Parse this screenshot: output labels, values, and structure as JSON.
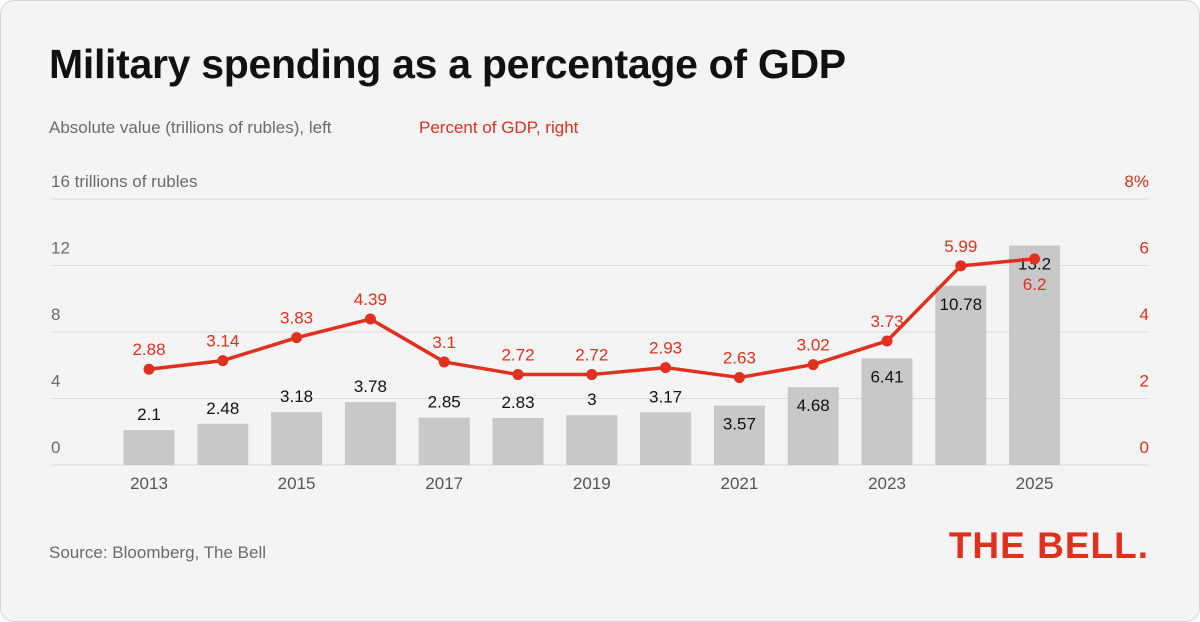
{
  "title": "Military spending as a percentage of GDP",
  "legend": {
    "left": "Absolute value (trillions of rubles), left",
    "right": "Percent of GDP, right"
  },
  "source": "Source: Bloomberg, The Bell",
  "logo": "THE BELL.",
  "colors": {
    "bar": "#c8c8c8",
    "line": "#e0301e",
    "text": "#111111",
    "muted": "#6b6b6b",
    "background": "#f4f4f4"
  },
  "chart_data": {
    "type": "bar+line",
    "categories": [
      "2013",
      "2014",
      "2015",
      "2016",
      "2017",
      "2018",
      "2019",
      "2020",
      "2021",
      "2022",
      "2023",
      "2024",
      "2025"
    ],
    "x_tick_labels": [
      "2013",
      "",
      "2015",
      "",
      "2017",
      "",
      "2019",
      "",
      "2021",
      "",
      "2023",
      "",
      "2025"
    ],
    "series": [
      {
        "name": "Absolute value (trillions of rubles), left",
        "type": "bar",
        "axis": "left",
        "values": [
          2.1,
          2.48,
          3.18,
          3.78,
          2.85,
          2.83,
          3,
          3.17,
          3.57,
          4.68,
          6.41,
          10.78,
          13.2
        ],
        "labels": [
          "2.1",
          "2.48",
          "3.18",
          "3.78",
          "2.85",
          "2.83",
          "3",
          "3.17",
          "3.57",
          "4.68",
          "6.41",
          "10.78",
          "13.2"
        ]
      },
      {
        "name": "Percent of GDP, right",
        "type": "line",
        "axis": "right",
        "values": [
          2.88,
          3.14,
          3.83,
          4.39,
          3.1,
          2.72,
          2.72,
          2.93,
          2.63,
          3.02,
          3.73,
          5.99,
          6.2
        ],
        "labels": [
          "2.88",
          "3.14",
          "3.83",
          "4.39",
          "3.1",
          "2.72",
          "2.72",
          "2.93",
          "2.63",
          "3.02",
          "3.73",
          "5.99",
          "6.2"
        ]
      }
    ],
    "y_left": {
      "range": [
        0,
        16
      ],
      "ticks": [
        0,
        4,
        8,
        12,
        16
      ],
      "tick_labels": [
        "0",
        "4",
        "8",
        "12",
        "16 trillions of rubles"
      ]
    },
    "y_right": {
      "range": [
        0,
        8
      ],
      "ticks": [
        0,
        2,
        4,
        6,
        8
      ],
      "tick_labels": [
        "0",
        "2",
        "4",
        "6",
        "8%"
      ]
    },
    "grid": true
  }
}
